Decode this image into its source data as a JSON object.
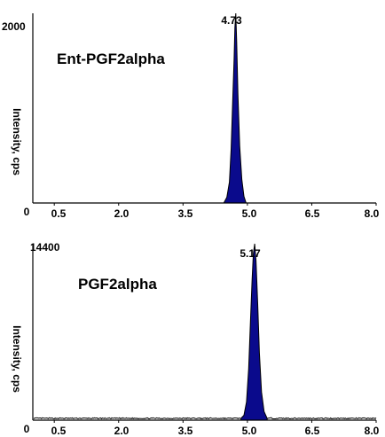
{
  "chart_data": [
    {
      "type": "area",
      "title": "Ent-PGF2alpha",
      "ylabel": "Intensity, cps",
      "y_top_label": "2000",
      "xlim": [
        0,
        8.0
      ],
      "ylim": [
        0,
        2000
      ],
      "x_ticks": [
        "0",
        "0.5",
        "2.0",
        "3.5",
        "5.0",
        "6.5",
        "8.0"
      ],
      "peak_label": "4.73",
      "peak": {
        "x": 4.73,
        "height": 2000
      },
      "baseline": 0,
      "series": [
        {
          "x": [
            4.45,
            4.52,
            4.58,
            4.62,
            4.66,
            4.69,
            4.71,
            4.73,
            4.75,
            4.78,
            4.82,
            4.87,
            4.92,
            4.97
          ],
          "y": [
            0,
            60,
            220,
            560,
            1100,
            1520,
            1850,
            2000,
            1700,
            1150,
            600,
            250,
            70,
            0
          ]
        }
      ],
      "fill_color": "#0a0a8c"
    },
    {
      "type": "area",
      "title": "PGF2alpha",
      "ylabel": "Intensity, cps",
      "y_top_label": "14400",
      "xlim": [
        0,
        8.0
      ],
      "ylim": [
        0,
        14400
      ],
      "x_ticks": [
        "0",
        "0.5",
        "2.0",
        "3.5",
        "5.0",
        "6.5",
        "8.0"
      ],
      "peak_label": "5.17",
      "peak": {
        "x": 5.17,
        "height": 14400
      },
      "baseline": 150,
      "series": [
        {
          "x": [
            4.85,
            4.92,
            4.98,
            5.03,
            5.07,
            5.11,
            5.14,
            5.17,
            5.2,
            5.24,
            5.28,
            5.33,
            5.39,
            5.46
          ],
          "y": [
            150,
            400,
            1500,
            4200,
            8000,
            11500,
            13600,
            14400,
            13000,
            9500,
            5500,
            2300,
            700,
            150
          ]
        }
      ],
      "fill_color": "#0a0a8c"
    }
  ]
}
